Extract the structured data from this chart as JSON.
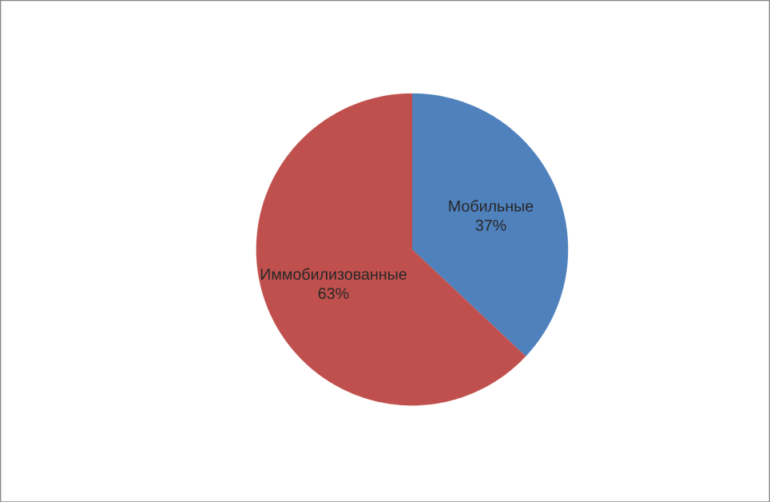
{
  "chart_data": {
    "type": "pie",
    "categories": [
      "Мобильные",
      "Иммобилизованные"
    ],
    "values": [
      37,
      63
    ],
    "value_labels": [
      "37%",
      "63%"
    ],
    "colors": [
      "#4f81bd",
      "#c0504d"
    ]
  }
}
